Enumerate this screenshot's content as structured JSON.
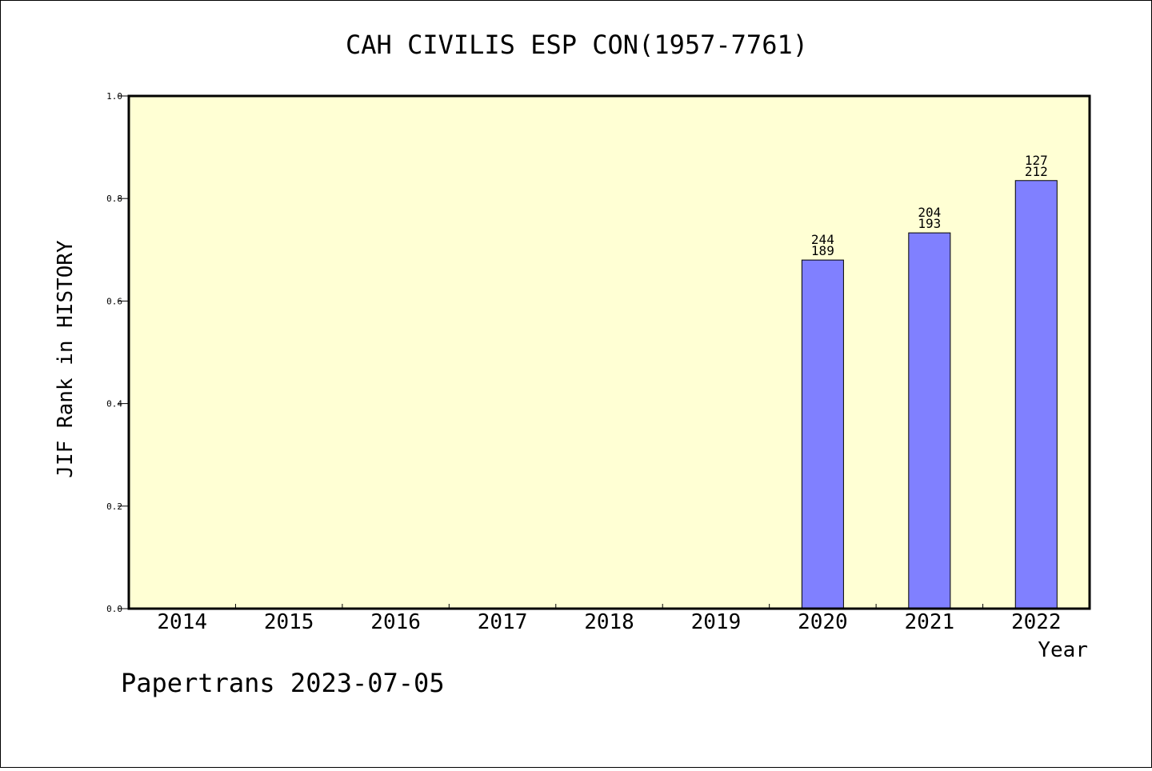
{
  "chart_data": {
    "type": "bar",
    "title": "CAH CIVILIS ESP CON(1957-7761)",
    "xlabel": "Year",
    "ylabel": "JIF Rank in HISTORY",
    "ylim": [
      0,
      1.0
    ],
    "yticks": [
      "0.0",
      "0.2",
      "0.4",
      "0.6",
      "0.8",
      "1.0"
    ],
    "ytick_values": [
      0,
      0.2,
      0.4,
      0.6,
      0.8,
      1.0
    ],
    "categories": [
      "2014",
      "2015",
      "2016",
      "2017",
      "2018",
      "2019",
      "2020",
      "2021",
      "2022"
    ],
    "values": [
      null,
      null,
      null,
      null,
      null,
      null,
      0.68,
      0.733,
      0.835
    ],
    "bar_labels": [
      null,
      null,
      null,
      null,
      null,
      null,
      {
        "top": "244",
        "bottom": "189"
      },
      {
        "top": "204",
        "bottom": "193"
      },
      {
        "top": "127",
        "bottom": "212"
      }
    ],
    "grid": false,
    "plot_background": "#ffffd4",
    "bar_color": "#8080ff"
  },
  "footer": {
    "text": "Papertrans 2023-07-05"
  }
}
